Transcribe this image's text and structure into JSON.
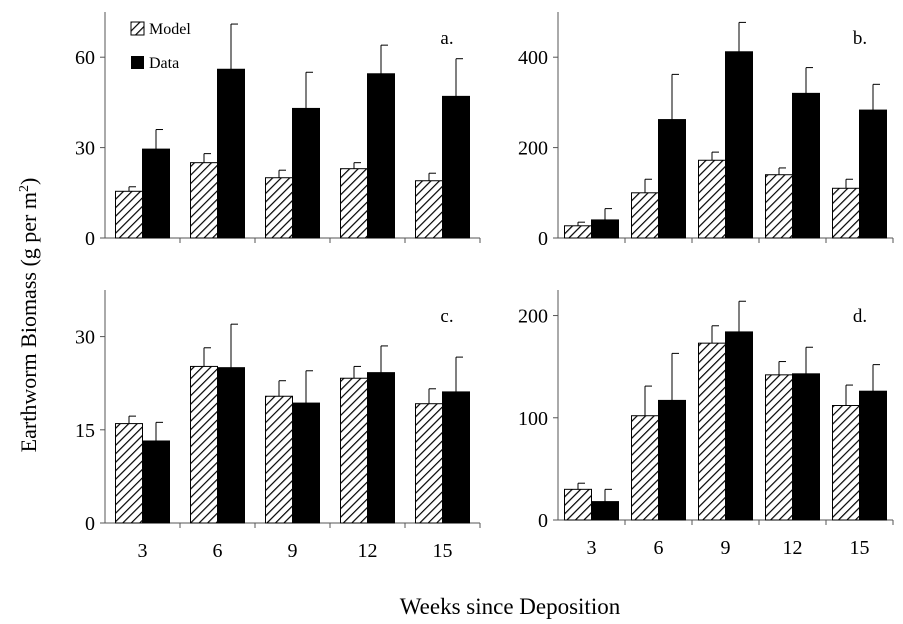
{
  "figure": {
    "ylabel": "Earthworm Biomass (g per m",
    "ylabel_sup": "2",
    "ylabel_close": ")",
    "xlabel": "Weeks since Deposition"
  },
  "legend": {
    "model_label": "Model",
    "data_label": "Data"
  },
  "colors": {
    "data": "#000000",
    "model_stripe": "#000000",
    "model_bg": "#ffffff"
  },
  "chart_data": [
    {
      "type": "bar",
      "panel": "a.",
      "categories": [
        "3",
        "6",
        "9",
        "12",
        "15"
      ],
      "ylim": [
        0,
        75
      ],
      "yticks": [
        0,
        30,
        60
      ],
      "series": [
        {
          "name": "Model",
          "values": [
            15.5,
            25,
            20,
            23,
            19
          ],
          "errors": [
            1.5,
            3,
            2.5,
            2,
            2.5
          ]
        },
        {
          "name": "Data",
          "values": [
            29.5,
            56,
            43,
            54.5,
            47
          ],
          "errors": [
            6.5,
            15,
            12,
            9.5,
            12.5
          ]
        }
      ]
    },
    {
      "type": "bar",
      "panel": "b.",
      "categories": [
        "3",
        "6",
        "9",
        "12",
        "15"
      ],
      "ylim": [
        0,
        500
      ],
      "yticks": [
        0,
        200,
        400
      ],
      "series": [
        {
          "name": "Model",
          "values": [
            27,
            100,
            172,
            140,
            110
          ],
          "errors": [
            8,
            30,
            18,
            15,
            20
          ]
        },
        {
          "name": "Data",
          "values": [
            40,
            262,
            412,
            320,
            283
          ],
          "errors": [
            25,
            100,
            65,
            57,
            57
          ]
        }
      ]
    },
    {
      "type": "bar",
      "panel": "c.",
      "categories": [
        "3",
        "6",
        "9",
        "12",
        "15"
      ],
      "ylim": [
        0,
        37.5
      ],
      "yticks": [
        0,
        15,
        30
      ],
      "series": [
        {
          "name": "Model",
          "values": [
            16,
            25.2,
            20.4,
            23.3,
            19.2
          ],
          "errors": [
            1.2,
            3,
            2.5,
            1.9,
            2.4
          ]
        },
        {
          "name": "Data",
          "values": [
            13.2,
            25,
            19.3,
            24.2,
            21.1
          ],
          "errors": [
            3,
            7,
            5.2,
            4.3,
            5.6
          ]
        }
      ]
    },
    {
      "type": "bar",
      "panel": "d.",
      "categories": [
        "3",
        "6",
        "9",
        "12",
        "15"
      ],
      "ylim": [
        0,
        225
      ],
      "yticks": [
        0,
        100,
        200
      ],
      "series": [
        {
          "name": "Model",
          "values": [
            30,
            102,
            173,
            142,
            112
          ],
          "errors": [
            6,
            29,
            17,
            13,
            20
          ]
        },
        {
          "name": "Data",
          "values": [
            18,
            117,
            184,
            143,
            126
          ],
          "errors": [
            12,
            46,
            30,
            26,
            26
          ]
        }
      ]
    }
  ]
}
